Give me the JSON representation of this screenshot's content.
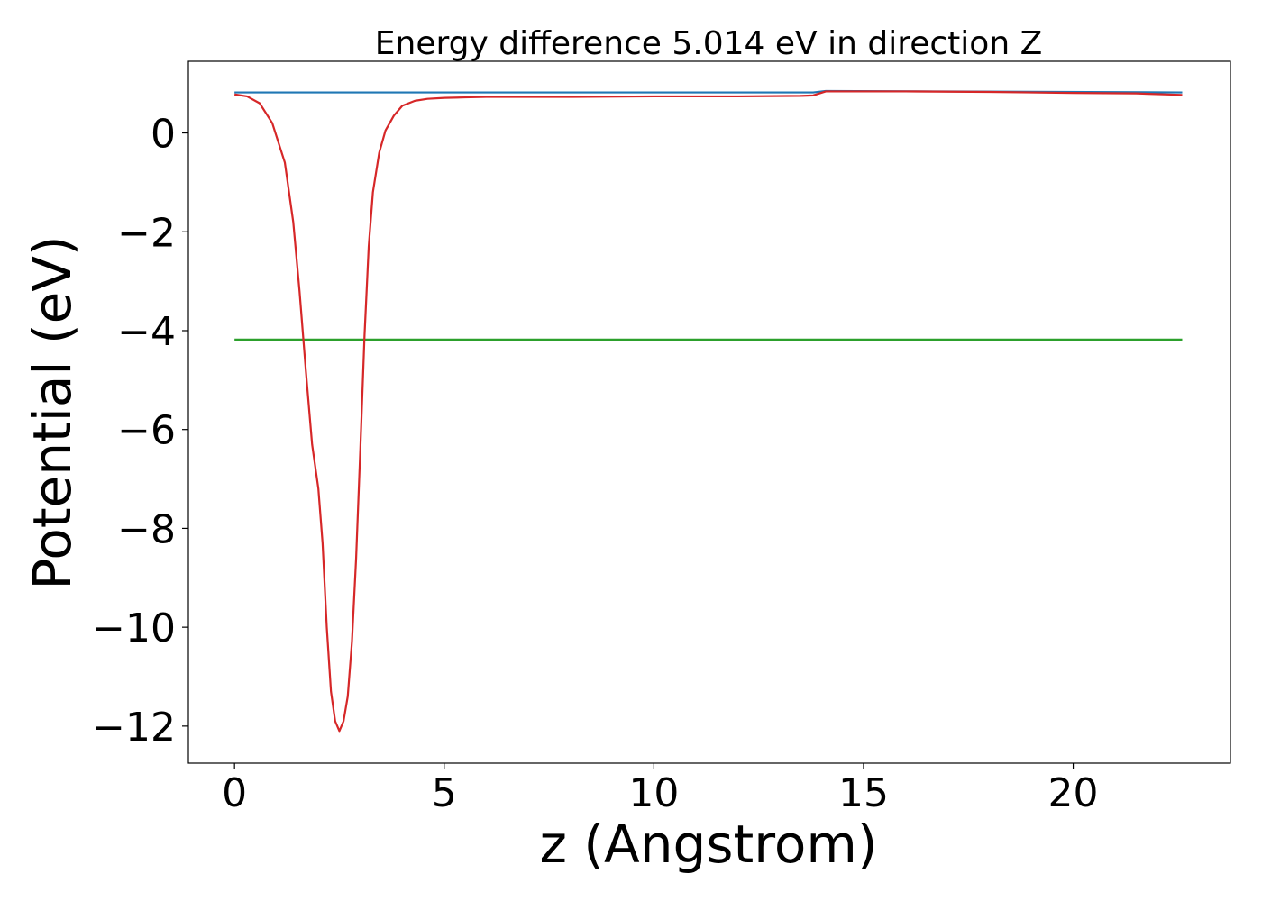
{
  "chart_data": {
    "type": "line",
    "title": "Energy difference 5.014 eV in direction Z",
    "xlabel": "z (Angstrom)",
    "ylabel": "Potential (eV)",
    "xlim": [
      -1.1,
      23.75
    ],
    "ylim": [
      -12.75,
      1.45
    ],
    "xticks": [
      0,
      5,
      10,
      15,
      20
    ],
    "yticks": [
      0,
      -2,
      -4,
      -6,
      -8,
      -10,
      -12
    ],
    "xtick_labels": [
      "0",
      "5",
      "10",
      "15",
      "20"
    ],
    "ytick_labels": [
      "0",
      "−2",
      "−4",
      "−6",
      "−8",
      "−10",
      "−12"
    ],
    "grid": false,
    "legend": null,
    "series": [
      {
        "color": "#1f77b4",
        "x": [
          0,
          13.8,
          14.1,
          22.6
        ],
        "y": [
          0.82,
          0.82,
          0.85,
          0.82
        ]
      },
      {
        "color": "#2ca02c",
        "x": [
          0,
          22.6
        ],
        "y": [
          -4.18,
          -4.18
        ]
      },
      {
        "color": "#d62728",
        "x": [
          0,
          0.3,
          0.6,
          0.9,
          1.2,
          1.4,
          1.55,
          1.7,
          1.85,
          2.0,
          2.1,
          2.2,
          2.3,
          2.4,
          2.5,
          2.6,
          2.7,
          2.8,
          2.9,
          3.0,
          3.1,
          3.2,
          3.3,
          3.45,
          3.6,
          3.8,
          4.0,
          4.3,
          4.6,
          5.0,
          5.5,
          6.0,
          8.0,
          10.0,
          12.0,
          13.5,
          13.8,
          14.1,
          16.0,
          18.0,
          20.0,
          21.5,
          22.6
        ],
        "y": [
          0.78,
          0.74,
          0.6,
          0.2,
          -0.6,
          -1.8,
          -3.2,
          -4.8,
          -6.3,
          -7.2,
          -8.3,
          -10.0,
          -11.3,
          -11.9,
          -12.1,
          -11.9,
          -11.4,
          -10.3,
          -8.6,
          -6.4,
          -4.1,
          -2.3,
          -1.2,
          -0.4,
          0.05,
          0.35,
          0.55,
          0.65,
          0.69,
          0.71,
          0.72,
          0.73,
          0.73,
          0.74,
          0.74,
          0.75,
          0.76,
          0.84,
          0.84,
          0.83,
          0.81,
          0.8,
          0.77
        ]
      }
    ]
  }
}
